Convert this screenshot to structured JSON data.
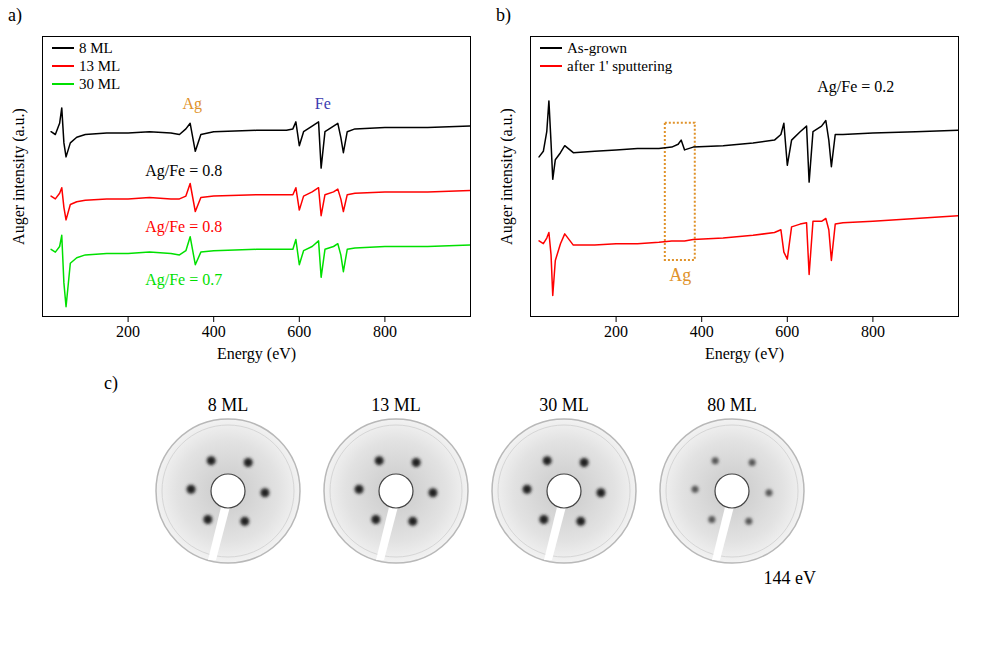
{
  "chart_data": [
    {
      "type": "line",
      "label": "a)",
      "x_label": "Energy (eV)",
      "y_label": "Auger intensity (a.u.)",
      "xlim": [
        0,
        1000
      ],
      "xticks": [
        200,
        400,
        600,
        800
      ],
      "ylim": [
        0,
        10
      ],
      "yticks": [],
      "tick_labels": "x",
      "grid": false,
      "legend": "top-left",
      "x": [
        20,
        30,
        40,
        45,
        50,
        55,
        65,
        80,
        100,
        150,
        200,
        250,
        300,
        320,
        335,
        345,
        357,
        370,
        400,
        500,
        570,
        585,
        592,
        600,
        610,
        630,
        645,
        651,
        660,
        680,
        690,
        697,
        703,
        712,
        730,
        800,
        900,
        1000
      ],
      "series": [
        {
          "name": "8 ML",
          "color": "#000000",
          "values": [
            6.6,
            6.5,
            6.9,
            7.45,
            6.2,
            5.7,
            6.2,
            6.4,
            6.5,
            6.55,
            6.55,
            6.6,
            6.55,
            6.5,
            6.7,
            6.9,
            5.9,
            6.5,
            6.6,
            6.65,
            6.65,
            6.7,
            6.95,
            6.1,
            6.6,
            6.8,
            6.95,
            5.3,
            6.6,
            6.8,
            6.9,
            6.4,
            5.85,
            6.6,
            6.7,
            6.75,
            6.75,
            6.8
          ]
        },
        {
          "name": "13 ML",
          "color": "#ff0000",
          "values": [
            4.3,
            4.2,
            4.4,
            4.6,
            3.9,
            3.45,
            4.0,
            4.1,
            4.15,
            4.2,
            4.2,
            4.25,
            4.2,
            4.2,
            4.3,
            4.75,
            3.75,
            4.25,
            4.3,
            4.35,
            4.35,
            4.35,
            4.6,
            3.8,
            4.3,
            4.45,
            4.6,
            3.6,
            4.35,
            4.45,
            4.55,
            4.2,
            3.75,
            4.35,
            4.4,
            4.45,
            4.45,
            4.5
          ]
        },
        {
          "name": "30 ML",
          "color": "#00e000",
          "values": [
            2.4,
            2.3,
            2.5,
            2.9,
            1.2,
            0.35,
            1.9,
            2.1,
            2.2,
            2.25,
            2.25,
            2.3,
            2.25,
            2.2,
            2.35,
            2.85,
            1.85,
            2.3,
            2.35,
            2.4,
            2.4,
            2.4,
            2.75,
            1.85,
            2.35,
            2.5,
            2.7,
            1.4,
            2.4,
            2.5,
            2.6,
            2.2,
            1.6,
            2.4,
            2.45,
            2.5,
            2.5,
            2.55
          ]
        }
      ],
      "annotations": [
        {
          "text": "Ag",
          "x": 350,
          "y": 7.6,
          "color": "#e0922a"
        },
        {
          "text": "Fe",
          "x": 655,
          "y": 7.6,
          "color": "#3b3bb0"
        },
        {
          "text": "Ag/Fe = 0.8",
          "x": 330,
          "y": 5.2,
          "color": "#000000"
        },
        {
          "text": "Ag/Fe = 0.8",
          "x": 330,
          "y": 3.2,
          "color": "#ff0000"
        },
        {
          "text": "Ag/Fe = 0.7",
          "x": 330,
          "y": 1.3,
          "color": "#00e000"
        }
      ]
    },
    {
      "type": "line",
      "label": "b)",
      "x_label": "Energy (eV)",
      "y_label": "Auger intensity (a.u.)",
      "xlim": [
        0,
        1000
      ],
      "xticks": [
        200,
        400,
        600,
        800
      ],
      "ylim": [
        0,
        10
      ],
      "yticks": [],
      "tick_labels": "x",
      "grid": false,
      "legend": "top-left",
      "x": [
        20,
        30,
        38,
        43,
        48,
        52,
        58,
        70,
        80,
        100,
        150,
        200,
        250,
        300,
        330,
        345,
        352,
        360,
        380,
        450,
        520,
        570,
        585,
        592,
        600,
        610,
        630,
        645,
        651,
        660,
        680,
        690,
        697,
        703,
        712,
        730,
        800,
        900,
        1000
      ],
      "series": [
        {
          "name": "As-grown",
          "color": "#000000",
          "values": [
            5.7,
            5.9,
            6.6,
            7.7,
            6.2,
            4.9,
            5.6,
            5.85,
            6.1,
            5.85,
            5.9,
            5.95,
            6.0,
            6.0,
            6.05,
            6.15,
            6.3,
            5.95,
            6.05,
            6.1,
            6.2,
            6.3,
            6.5,
            6.9,
            5.4,
            6.3,
            6.6,
            6.8,
            4.8,
            6.6,
            6.8,
            7.0,
            6.3,
            5.35,
            6.5,
            6.5,
            6.55,
            6.6,
            6.65
          ]
        },
        {
          "name": "after 1' sputtering",
          "color": "#ff0000",
          "values": [
            2.7,
            2.6,
            2.8,
            3.0,
            2.2,
            0.75,
            2.0,
            2.6,
            2.95,
            2.55,
            2.55,
            2.6,
            2.6,
            2.65,
            2.7,
            2.7,
            2.7,
            2.7,
            2.75,
            2.8,
            2.9,
            3.0,
            3.1,
            2.3,
            2.05,
            3.2,
            3.3,
            3.35,
            1.5,
            3.4,
            3.4,
            3.5,
            3.1,
            2.0,
            3.3,
            3.35,
            3.4,
            3.5,
            3.6
          ]
        }
      ],
      "annotations": [
        {
          "text": "Ag/Fe = 0.2",
          "x": 760,
          "y": 8.2,
          "color": "#000000"
        }
      ],
      "highlight": {
        "text": "Ag",
        "x": [
          315,
          385
        ],
        "y": [
          2.0,
          6.9
        ],
        "color": "#e0922a"
      }
    }
  ],
  "leed": {
    "label": "c)",
    "images": [
      "8 ML",
      "13 ML",
      "30 ML",
      "80 ML"
    ],
    "energy": "144 eV"
  }
}
